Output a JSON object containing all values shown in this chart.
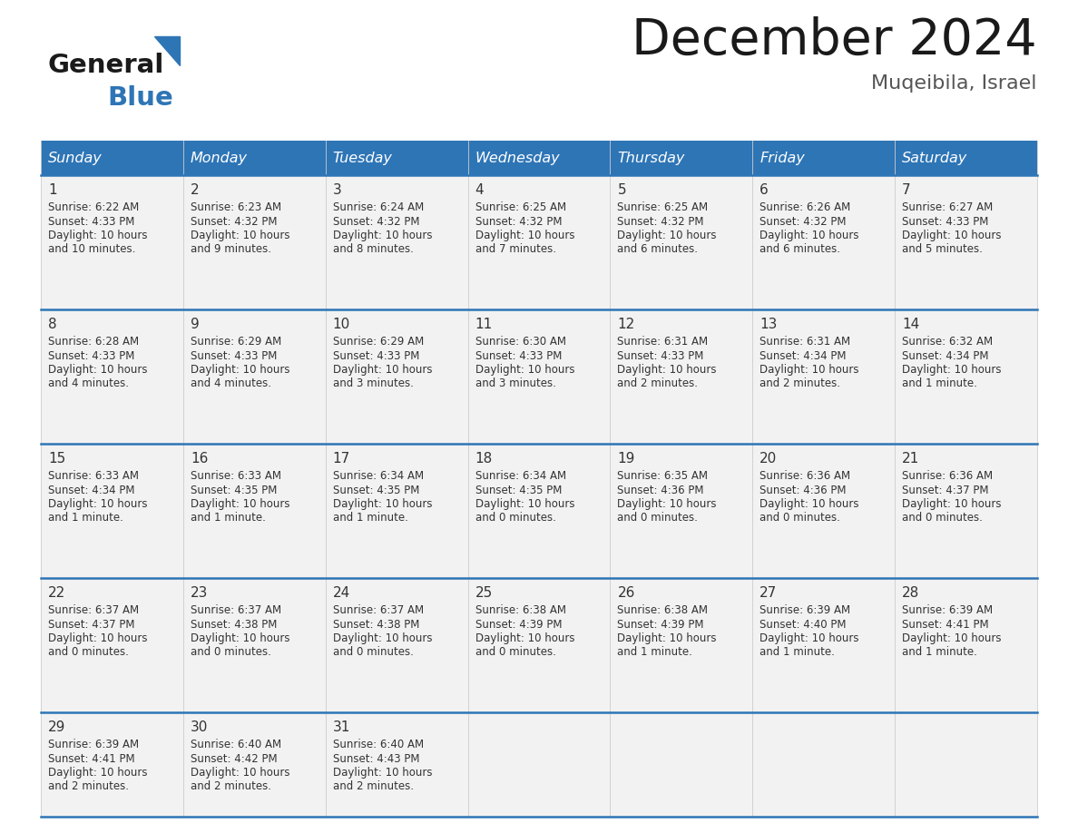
{
  "title": "December 2024",
  "subtitle": "Muqeibila, Israel",
  "header_color": "#2E75B6",
  "header_text_color": "#FFFFFF",
  "day_names": [
    "Sunday",
    "Monday",
    "Tuesday",
    "Wednesday",
    "Thursday",
    "Friday",
    "Saturday"
  ],
  "cell_bg": "#F2F2F2",
  "border_color": "#2E75B6",
  "text_color": "#333333",
  "days": [
    {
      "day": 1,
      "col": 0,
      "row": 0,
      "sunrise": "6:22 AM",
      "sunset": "4:33 PM",
      "daylight_extra": "and 10 minutes."
    },
    {
      "day": 2,
      "col": 1,
      "row": 0,
      "sunrise": "6:23 AM",
      "sunset": "4:32 PM",
      "daylight_extra": "and 9 minutes."
    },
    {
      "day": 3,
      "col": 2,
      "row": 0,
      "sunrise": "6:24 AM",
      "sunset": "4:32 PM",
      "daylight_extra": "and 8 minutes."
    },
    {
      "day": 4,
      "col": 3,
      "row": 0,
      "sunrise": "6:25 AM",
      "sunset": "4:32 PM",
      "daylight_extra": "and 7 minutes."
    },
    {
      "day": 5,
      "col": 4,
      "row": 0,
      "sunrise": "6:25 AM",
      "sunset": "4:32 PM",
      "daylight_extra": "and 6 minutes."
    },
    {
      "day": 6,
      "col": 5,
      "row": 0,
      "sunrise": "6:26 AM",
      "sunset": "4:32 PM",
      "daylight_extra": "and 6 minutes."
    },
    {
      "day": 7,
      "col": 6,
      "row": 0,
      "sunrise": "6:27 AM",
      "sunset": "4:33 PM",
      "daylight_extra": "and 5 minutes."
    },
    {
      "day": 8,
      "col": 0,
      "row": 1,
      "sunrise": "6:28 AM",
      "sunset": "4:33 PM",
      "daylight_extra": "and 4 minutes."
    },
    {
      "day": 9,
      "col": 1,
      "row": 1,
      "sunrise": "6:29 AM",
      "sunset": "4:33 PM",
      "daylight_extra": "and 4 minutes."
    },
    {
      "day": 10,
      "col": 2,
      "row": 1,
      "sunrise": "6:29 AM",
      "sunset": "4:33 PM",
      "daylight_extra": "and 3 minutes."
    },
    {
      "day": 11,
      "col": 3,
      "row": 1,
      "sunrise": "6:30 AM",
      "sunset": "4:33 PM",
      "daylight_extra": "and 3 minutes."
    },
    {
      "day": 12,
      "col": 4,
      "row": 1,
      "sunrise": "6:31 AM",
      "sunset": "4:33 PM",
      "daylight_extra": "and 2 minutes."
    },
    {
      "day": 13,
      "col": 5,
      "row": 1,
      "sunrise": "6:31 AM",
      "sunset": "4:34 PM",
      "daylight_extra": "and 2 minutes."
    },
    {
      "day": 14,
      "col": 6,
      "row": 1,
      "sunrise": "6:32 AM",
      "sunset": "4:34 PM",
      "daylight_extra": "and 1 minute."
    },
    {
      "day": 15,
      "col": 0,
      "row": 2,
      "sunrise": "6:33 AM",
      "sunset": "4:34 PM",
      "daylight_extra": "and 1 minute."
    },
    {
      "day": 16,
      "col": 1,
      "row": 2,
      "sunrise": "6:33 AM",
      "sunset": "4:35 PM",
      "daylight_extra": "and 1 minute."
    },
    {
      "day": 17,
      "col": 2,
      "row": 2,
      "sunrise": "6:34 AM",
      "sunset": "4:35 PM",
      "daylight_extra": "and 1 minute."
    },
    {
      "day": 18,
      "col": 3,
      "row": 2,
      "sunrise": "6:34 AM",
      "sunset": "4:35 PM",
      "daylight_extra": "and 0 minutes."
    },
    {
      "day": 19,
      "col": 4,
      "row": 2,
      "sunrise": "6:35 AM",
      "sunset": "4:36 PM",
      "daylight_extra": "and 0 minutes."
    },
    {
      "day": 20,
      "col": 5,
      "row": 2,
      "sunrise": "6:36 AM",
      "sunset": "4:36 PM",
      "daylight_extra": "and 0 minutes."
    },
    {
      "day": 21,
      "col": 6,
      "row": 2,
      "sunrise": "6:36 AM",
      "sunset": "4:37 PM",
      "daylight_extra": "and 0 minutes."
    },
    {
      "day": 22,
      "col": 0,
      "row": 3,
      "sunrise": "6:37 AM",
      "sunset": "4:37 PM",
      "daylight_extra": "and 0 minutes."
    },
    {
      "day": 23,
      "col": 1,
      "row": 3,
      "sunrise": "6:37 AM",
      "sunset": "4:38 PM",
      "daylight_extra": "and 0 minutes."
    },
    {
      "day": 24,
      "col": 2,
      "row": 3,
      "sunrise": "6:37 AM",
      "sunset": "4:38 PM",
      "daylight_extra": "and 0 minutes."
    },
    {
      "day": 25,
      "col": 3,
      "row": 3,
      "sunrise": "6:38 AM",
      "sunset": "4:39 PM",
      "daylight_extra": "and 0 minutes."
    },
    {
      "day": 26,
      "col": 4,
      "row": 3,
      "sunrise": "6:38 AM",
      "sunset": "4:39 PM",
      "daylight_extra": "and 1 minute."
    },
    {
      "day": 27,
      "col": 5,
      "row": 3,
      "sunrise": "6:39 AM",
      "sunset": "4:40 PM",
      "daylight_extra": "and 1 minute."
    },
    {
      "day": 28,
      "col": 6,
      "row": 3,
      "sunrise": "6:39 AM",
      "sunset": "4:41 PM",
      "daylight_extra": "and 1 minute."
    },
    {
      "day": 29,
      "col": 0,
      "row": 4,
      "sunrise": "6:39 AM",
      "sunset": "4:41 PM",
      "daylight_extra": "and 2 minutes."
    },
    {
      "day": 30,
      "col": 1,
      "row": 4,
      "sunrise": "6:40 AM",
      "sunset": "4:42 PM",
      "daylight_extra": "and 2 minutes."
    },
    {
      "day": 31,
      "col": 2,
      "row": 4,
      "sunrise": "6:40 AM",
      "sunset": "4:43 PM",
      "daylight_extra": "and 2 minutes."
    }
  ],
  "logo_text1": "General",
  "logo_text2": "Blue",
  "logo_text1_color": "#1a1a1a",
  "logo_text2_color": "#2E75B6",
  "logo_triangle_color": "#2E75B6",
  "title_color": "#1a1a1a",
  "subtitle_color": "#555555"
}
